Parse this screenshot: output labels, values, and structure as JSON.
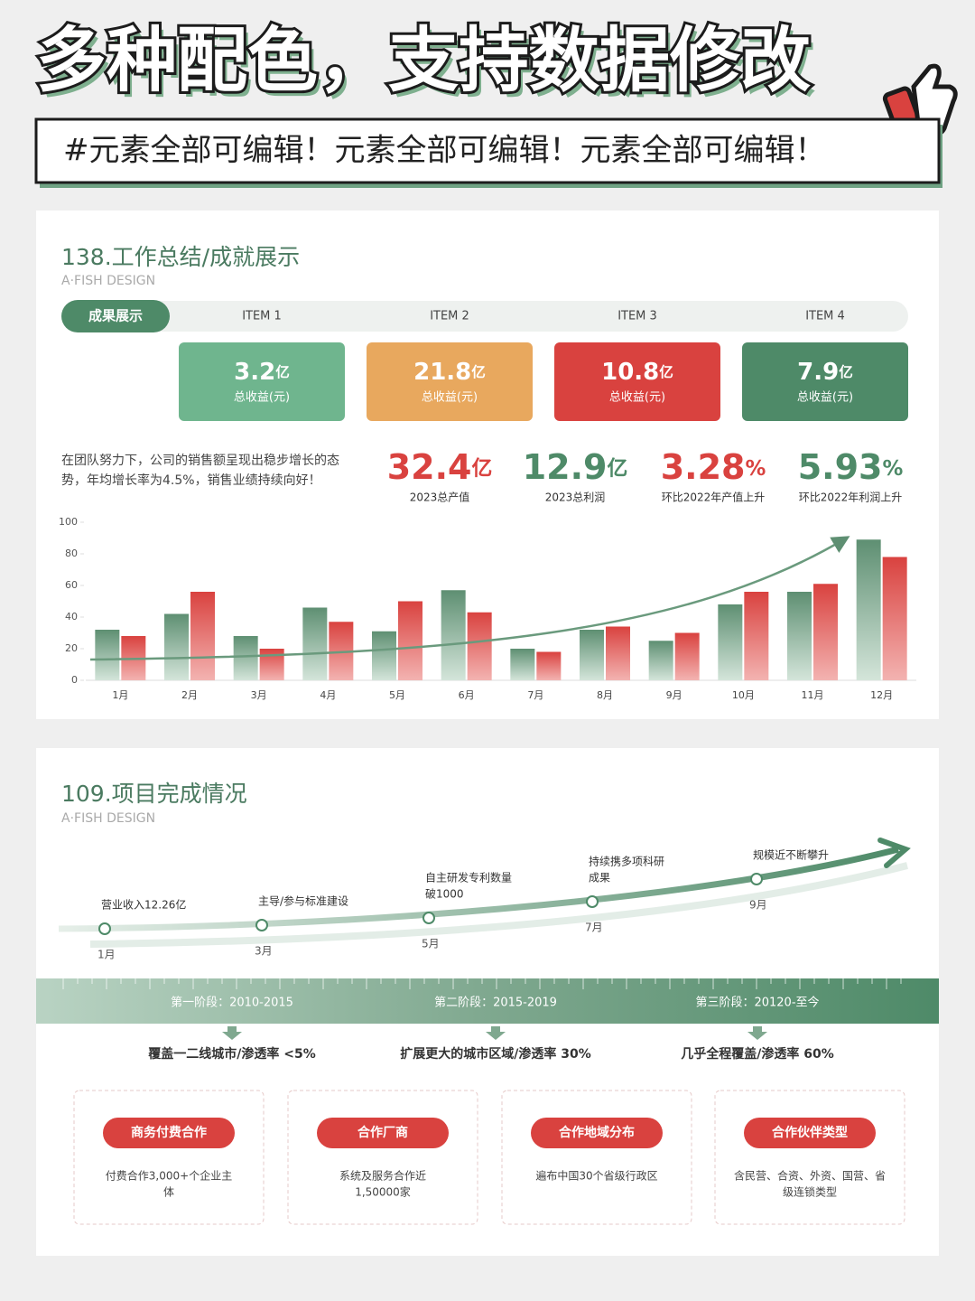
{
  "header": {
    "title": "多种配色，支持数据修改",
    "banner": "#元素全部可编辑！元素全部可编辑！元素全部可编辑！"
  },
  "slide1": {
    "title": "138.工作总结/成就展示",
    "subtitle": "A·FISH DESIGN",
    "tab": "成果展示",
    "items": [
      {
        "tab": "ITEM 1",
        "value": "3.2",
        "unit": "亿",
        "label": "总收益(元)"
      },
      {
        "tab": "ITEM 2",
        "value": "21.8",
        "unit": "亿",
        "label": "总收益(元)"
      },
      {
        "tab": "ITEM 3",
        "value": "10.8",
        "unit": "亿",
        "label": "总收益(元)"
      },
      {
        "tab": "ITEM 4",
        "value": "7.9",
        "unit": "亿",
        "label": "总收益(元)"
      }
    ],
    "description": [
      "在团队努力下，公司的销售额呈现出稳步增长的态",
      "势，年均增长率为4.5%，销售业绩持续向好！"
    ],
    "stats": [
      {
        "value": "32.4",
        "unit": "亿",
        "label": "2023总产值"
      },
      {
        "value": "12.9",
        "unit": "亿",
        "label": "2023总利润"
      },
      {
        "value": "3.28",
        "unit": "%",
        "label": "环比2022年产值上升"
      },
      {
        "value": "5.93",
        "unit": "%",
        "label": "环比2022年利润上升"
      }
    ]
  },
  "chart_data": {
    "type": "bar",
    "categories": [
      "1月",
      "2月",
      "3月",
      "4月",
      "5月",
      "6月",
      "7月",
      "8月",
      "9月",
      "10月",
      "11月",
      "12月"
    ],
    "series": [
      {
        "color": "#5e8f72",
        "values": [
          32,
          42,
          28,
          46,
          31,
          57,
          20,
          32,
          25,
          48,
          56,
          89
        ]
      },
      {
        "color": "#d9423f",
        "values": [
          28,
          56,
          20,
          37,
          50,
          43,
          18,
          34,
          30,
          56,
          61,
          78
        ]
      }
    ],
    "ylim": [
      0,
      100
    ],
    "yticks": [
      0,
      20,
      40,
      60,
      80,
      100
    ]
  },
  "slide2": {
    "title": "109.项目完成情况",
    "subtitle": "A·FISH DESIGN",
    "milestones": [
      {
        "label": [
          "营业收入12.26亿"
        ],
        "month": "1月"
      },
      {
        "label": [
          "主导/参与标准建设"
        ],
        "month": "3月"
      },
      {
        "label": [
          "自主研发专利数量",
          "破1000"
        ],
        "month": "5月"
      },
      {
        "label": [
          "持续携多项科研",
          "成果"
        ],
        "month": "7月"
      },
      {
        "label": [
          "规模近不断攀升"
        ],
        "month": "9月"
      }
    ],
    "stages": [
      {
        "name": "第一阶段：2010-2015",
        "desc": "覆盖一二线城市/渗透率 <5%"
      },
      {
        "name": "第二阶段：2015-2019",
        "desc": "扩展更大的城市区域/渗透率 30%"
      },
      {
        "name": "第三阶段：20120-至今",
        "desc": "几乎全程覆盖/渗透率 60%"
      }
    ],
    "cards": [
      {
        "title": "商务付费合作",
        "text": [
          "付费合作3,000+个企业主",
          "体"
        ]
      },
      {
        "title": "合作厂商",
        "text": [
          "系统及服务合作近",
          "1,50000家"
        ]
      },
      {
        "title": "合作地域分布",
        "text": [
          "遍布中国30个省级行政区"
        ]
      },
      {
        "title": "合作伙伴类型",
        "text": [
          "含民营、合资、外资、国营、省",
          "级连锁类型"
        ]
      }
    ]
  }
}
